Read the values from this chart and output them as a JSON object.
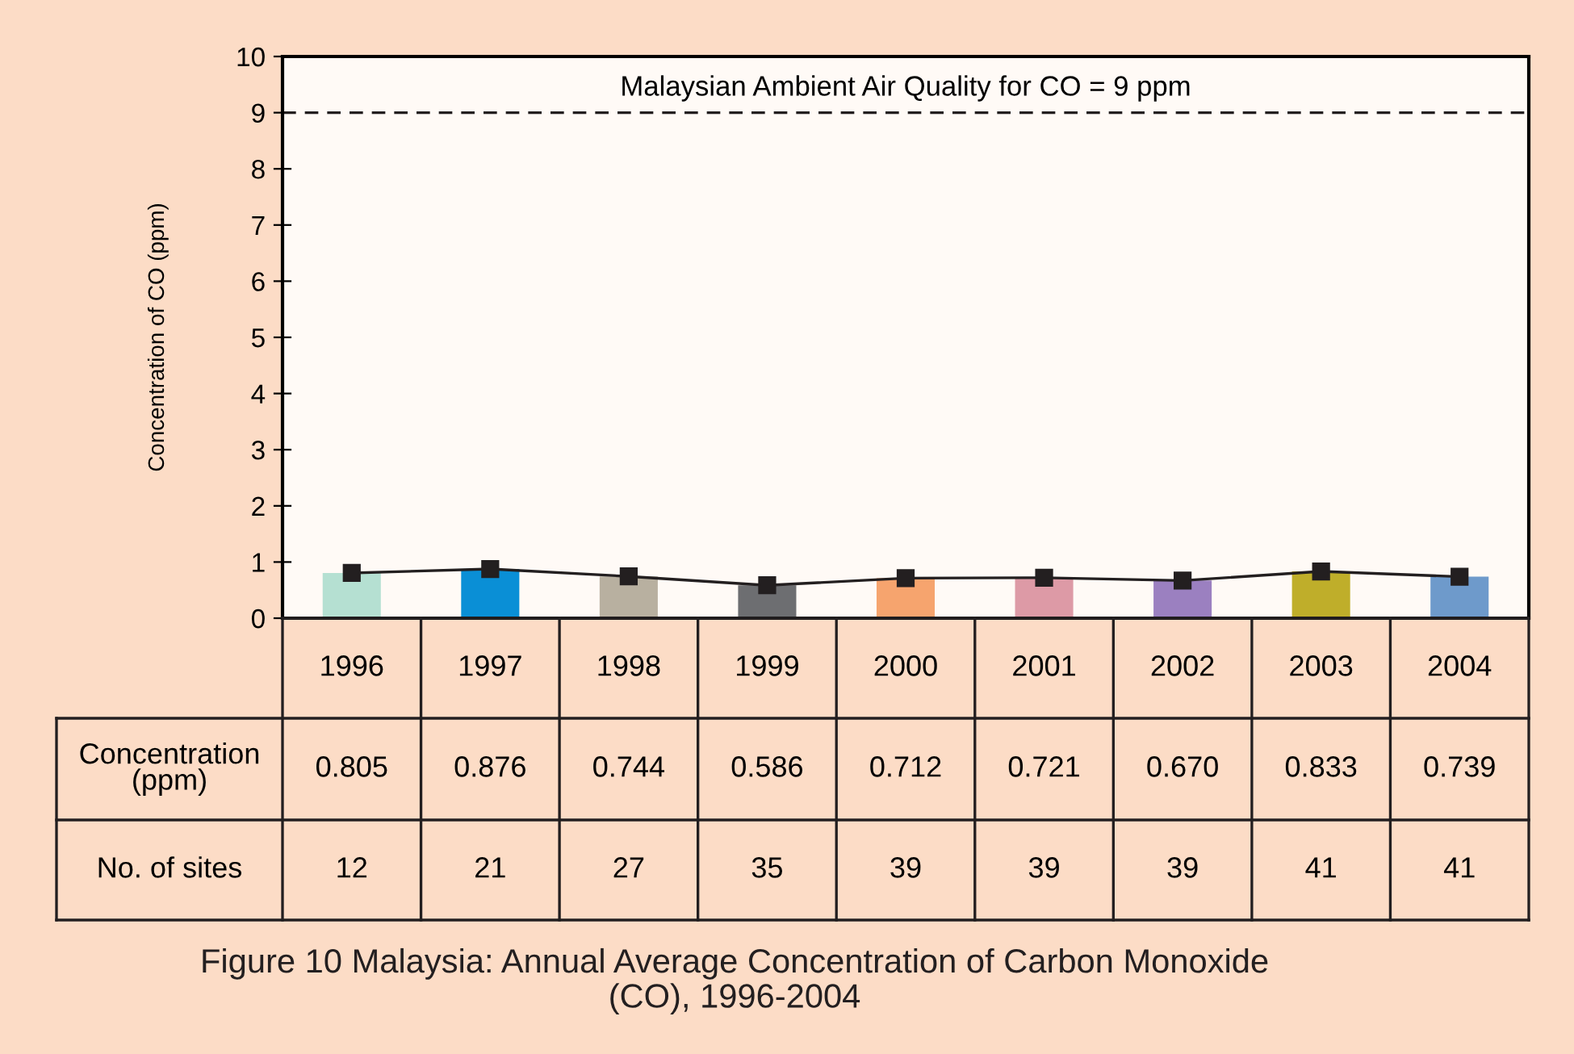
{
  "chart_data": {
    "type": "bar",
    "title": "Figure 10 Malaysia: Annual Average Concentration of Carbon Monoxide\n(CO), 1996-2004",
    "ylabel": "Concentration of CO (ppm)",
    "categories": [
      "1996",
      "1997",
      "1998",
      "1999",
      "2000",
      "2001",
      "2002",
      "2003",
      "2004"
    ],
    "series": [
      {
        "colors": [
          "#b5e0d2",
          "#0a8fd6",
          "#b8b0a0",
          "#6d6e71",
          "#f6a46e",
          "#dd9aa6",
          "#9b80c0",
          "#bfae2a",
          "#6e9acb"
        ],
        "values": [
          0.805,
          0.876,
          0.744,
          0.586,
          0.712,
          0.721,
          0.67,
          0.833,
          0.739
        ],
        "value_labels": [
          "0.805",
          "0.876",
          "0.744",
          "0.586",
          "0.712",
          "0.721",
          "0.670",
          "0.833",
          "0.739"
        ]
      },
      {
        "type": "line",
        "color": "#231f20",
        "marker": "square",
        "values": [
          0.805,
          0.876,
          0.744,
          0.586,
          0.712,
          0.721,
          0.67,
          0.833,
          0.739
        ]
      }
    ],
    "annotations": [
      "Concentration\n(ppm)",
      "No. of sites",
      "12",
      "21",
      "27",
      "35",
      "39",
      "39",
      "39",
      "41",
      "41"
    ],
    "ref_lines": [
      {
        "axis": "y",
        "value": 9,
        "label": "Malaysian Ambient Air Quality for CO = 9 ppm",
        "color": "#231f20",
        "line_style": "dashed"
      }
    ],
    "ylim": [
      0,
      10
    ],
    "yticks": [
      0,
      1,
      2,
      3,
      4,
      5,
      6,
      7,
      8,
      9,
      10
    ],
    "grid": false,
    "legend": false
  }
}
